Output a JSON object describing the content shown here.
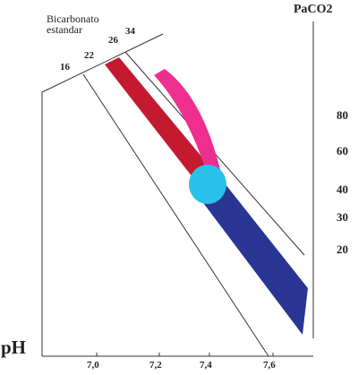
{
  "hco3_axis": {
    "title_lines": [
      "Bicarbonato",
      "estandar"
    ],
    "ticks": [
      "16",
      "22",
      "26",
      "34"
    ]
  },
  "pco2_axis": {
    "title": "PaCO2",
    "ticks": [
      "80",
      "60",
      "40",
      "30",
      "20"
    ]
  },
  "ph_axis": {
    "title": "pH",
    "ticks": [
      "7,0",
      "7,2",
      "7,4",
      "7,6"
    ]
  },
  "colors": {
    "red_band": "#c41a30",
    "magenta_band": "#ee2f8f",
    "blue_band": "#283593",
    "normal_zone": "#29c1ea",
    "lines": "#333333"
  }
}
